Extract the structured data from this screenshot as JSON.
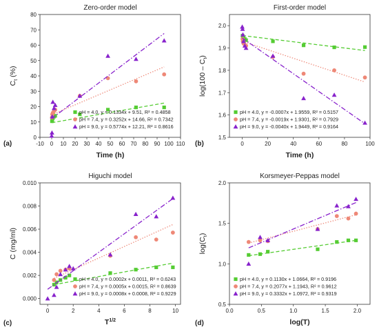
{
  "chart_data": [
    {
      "type": "scatter",
      "panel_label": "(a)",
      "title": "Zero-order model",
      "xlabel": "Time (h)",
      "ylabel": "C",
      "ylabel_sub": "t",
      "ylabel_suffix": " (%)",
      "xlim": [
        -10,
        110
      ],
      "ylim": [
        0,
        80
      ],
      "xticks": [
        "-10",
        "0",
        "10",
        "20",
        "30",
        "40",
        "50",
        "60",
        "70",
        "80",
        "90",
        "100",
        "110"
      ],
      "yticks": [
        "0",
        "10",
        "20",
        "30",
        "40",
        "50",
        "60",
        "70",
        "80"
      ],
      "legend_position": "bottom-right",
      "series": [
        {
          "name": "pH = 4.0, y = 0.1334x + 9.51, R² = 0.4858",
          "color": "#55cc33",
          "marker": "square",
          "x": [
            0.25,
            0.5,
            1,
            2,
            3,
            24,
            48,
            72,
            96
          ],
          "y": [
            10.5,
            11,
            12.5,
            13.5,
            14,
            15,
            18,
            19.5,
            19.5
          ],
          "fit": {
            "slope": 0.1334,
            "intercept": 9.51
          }
        },
        {
          "name": "pH = 7.4, y = 0.3252x + 14.66, R² = 0.7342",
          "color": "#ee8877",
          "marker": "circle",
          "x": [
            0.25,
            0.5,
            1,
            2,
            3,
            24,
            48,
            72,
            96
          ],
          "y": [
            13,
            15,
            16,
            17,
            18,
            27,
            38.5,
            36.5,
            41
          ],
          "fit": {
            "slope": 0.3252,
            "intercept": 14.66
          }
        },
        {
          "name": "pH = 9.0, y = 0.5774x + 12.21, R² = 0.8616",
          "color": "#8822cc",
          "marker": "triangle",
          "x": [
            0,
            0.25,
            0.5,
            1,
            2,
            3,
            24,
            48,
            72,
            96
          ],
          "y": [
            1,
            3,
            13.5,
            23,
            19,
            21,
            27,
            53,
            51,
            63
          ],
          "fit": {
            "slope": 0.5774,
            "intercept": 12.21
          }
        }
      ]
    },
    {
      "type": "scatter",
      "panel_label": "(b)",
      "title": "First-order model",
      "xlabel": "Time (h)",
      "ylabel": "log(100 – C",
      "ylabel_sub": "t",
      "ylabel_suffix": ")",
      "xlim": [
        -10,
        100
      ],
      "ylim": [
        1.5,
        2.05
      ],
      "xticks": [
        "0",
        "20",
        "40",
        "60",
        "80",
        "100"
      ],
      "yticks": [
        "1.5",
        "1.6",
        "1.7",
        "1.8",
        "1.9",
        "2.0"
      ],
      "legend_position": "bottom-left",
      "series": [
        {
          "name": "pH = 4.0, y = -0.0007x + 1.9559, R² = 0.5157",
          "color": "#55cc33",
          "marker": "square",
          "x": [
            0.25,
            0.5,
            1,
            2,
            3,
            24,
            48,
            72,
            96
          ],
          "y": [
            1.955,
            1.95,
            1.945,
            1.94,
            1.935,
            1.93,
            1.912,
            1.903,
            1.904
          ],
          "fit": {
            "slope": -0.0007,
            "intercept": 1.9559
          }
        },
        {
          "name": "pH = 7.4, y = -0.0019x + 1.9301, R² = 0.7929",
          "color": "#ee8877",
          "marker": "circle",
          "x": [
            0.25,
            0.5,
            1,
            2,
            3,
            24,
            48,
            72,
            96
          ],
          "y": [
            1.94,
            1.93,
            1.92,
            1.915,
            1.91,
            1.86,
            1.785,
            1.8,
            1.768
          ],
          "fit": {
            "slope": -0.0019,
            "intercept": 1.9301
          }
        },
        {
          "name": "pH = 9.0, y = -0.0040x + 1.9449, R² = 0.9164",
          "color": "#8822cc",
          "marker": "triangle",
          "x": [
            0,
            0.25,
            0.5,
            1,
            2,
            3,
            24,
            48,
            72,
            96
          ],
          "y": [
            1.995,
            1.985,
            1.96,
            1.93,
            1.91,
            1.9,
            1.865,
            1.675,
            1.69,
            1.565
          ],
          "fit": {
            "slope": -0.004,
            "intercept": 1.9449
          }
        }
      ]
    },
    {
      "type": "scatter",
      "panel_label": "(c)",
      "title": "Higuchi model",
      "xlabel": "T",
      "xlabel_sup": "1/2",
      "ylabel": "C (mg/ml)",
      "xlim": [
        -0.6,
        10.4
      ],
      "ylim": [
        -0.0005,
        0.01
      ],
      "xticks": [
        "0",
        "2",
        "4",
        "6",
        "8",
        "10"
      ],
      "yticks": [
        "0.000",
        "0.002",
        "0.004",
        "0.006",
        "0.008",
        "0.010"
      ],
      "legend_position": "bottom-right",
      "series": [
        {
          "name": "pH = 4.0, y = 0.0002x + 0.0011, R² = 0.6243",
          "color": "#55cc33",
          "marker": "square",
          "x": [
            0.5,
            0.7,
            1.0,
            1.4,
            1.7,
            4.9,
            6.9,
            8.5,
            9.8
          ],
          "y": [
            0.0012,
            0.0014,
            0.0016,
            0.0018,
            0.002,
            0.0022,
            0.0025,
            0.0027,
            0.0027
          ],
          "fit": {
            "slope": 0.0002,
            "intercept": 0.0011
          }
        },
        {
          "name": "pH = 7.4, y = 0.0005x + 0.0015, R² = 0.8639",
          "color": "#ee8877",
          "marker": "circle",
          "x": [
            0.5,
            0.7,
            1.0,
            1.4,
            1.7,
            4.9,
            6.9,
            8.5,
            9.8
          ],
          "y": [
            0.0016,
            0.0021,
            0.0024,
            0.0025,
            0.0026,
            0.0037,
            0.0053,
            0.0051,
            0.0057
          ],
          "fit": {
            "slope": 0.0005,
            "intercept": 0.0015
          }
        },
        {
          "name": "pH = 9.0, y = 0.0008x + 0.0008, R² = 0.9229",
          "color": "#8822cc",
          "marker": "triangle",
          "x": [
            0,
            0.5,
            0.7,
            1.0,
            1.4,
            1.7,
            2.0,
            4.9,
            6.9,
            8.5,
            9.8
          ],
          "y": [
            0.0,
            0.0003,
            0.001,
            0.0021,
            0.0025,
            0.0028,
            0.0026,
            0.0038,
            0.0073,
            0.0071,
            0.0087
          ],
          "fit": {
            "slope": 0.0008,
            "intercept": 0.0008
          }
        }
      ]
    },
    {
      "type": "scatter",
      "panel_label": "(d)",
      "title": "Korsmeyer-Peppas model",
      "xlabel": "log(T)",
      "ylabel": "log(C",
      "ylabel_sub": "t",
      "ylabel_suffix": ")",
      "xlim": [
        0.0,
        2.2
      ],
      "ylim": [
        0.5,
        2.0
      ],
      "xticks": [
        "0.0",
        "0.5",
        "1.0",
        "1.5",
        "2.0"
      ],
      "yticks": [
        "0.5",
        "1.0",
        "1.5",
        "2.0"
      ],
      "legend_position": "bottom-left",
      "series": [
        {
          "name": "pH = 4.0, y = 0.1130x + 1.0664, R² = 0.9196",
          "color": "#55cc33",
          "marker": "square",
          "x": [
            0.3,
            0.48,
            0.6,
            1.38,
            1.68,
            1.86,
            1.98
          ],
          "y": [
            1.11,
            1.12,
            1.15,
            1.18,
            1.27,
            1.29,
            1.29
          ],
          "fit": {
            "slope": 0.113,
            "intercept": 1.0664
          }
        },
        {
          "name": "pH = 7.4, y = 0.2077x + 1.1943, R² = 0.9612",
          "color": "#ee8877",
          "marker": "circle",
          "x": [
            0.3,
            0.48,
            0.6,
            1.38,
            1.68,
            1.86,
            1.98
          ],
          "y": [
            1.27,
            1.29,
            1.28,
            1.43,
            1.59,
            1.56,
            1.62
          ],
          "fit": {
            "slope": 0.2077,
            "intercept": 1.1943
          }
        },
        {
          "name": "pH = 9.0, y = 0.3332x + 1.0972, R² = 0.9319",
          "color": "#8822cc",
          "marker": "triangle",
          "x": [
            0.3,
            0.48,
            0.6,
            1.38,
            1.68,
            1.86,
            1.98
          ],
          "y": [
            1.0,
            1.33,
            1.29,
            1.43,
            1.72,
            1.71,
            1.8
          ],
          "fit": {
            "slope": 0.3332,
            "intercept": 1.0972
          }
        }
      ]
    }
  ]
}
